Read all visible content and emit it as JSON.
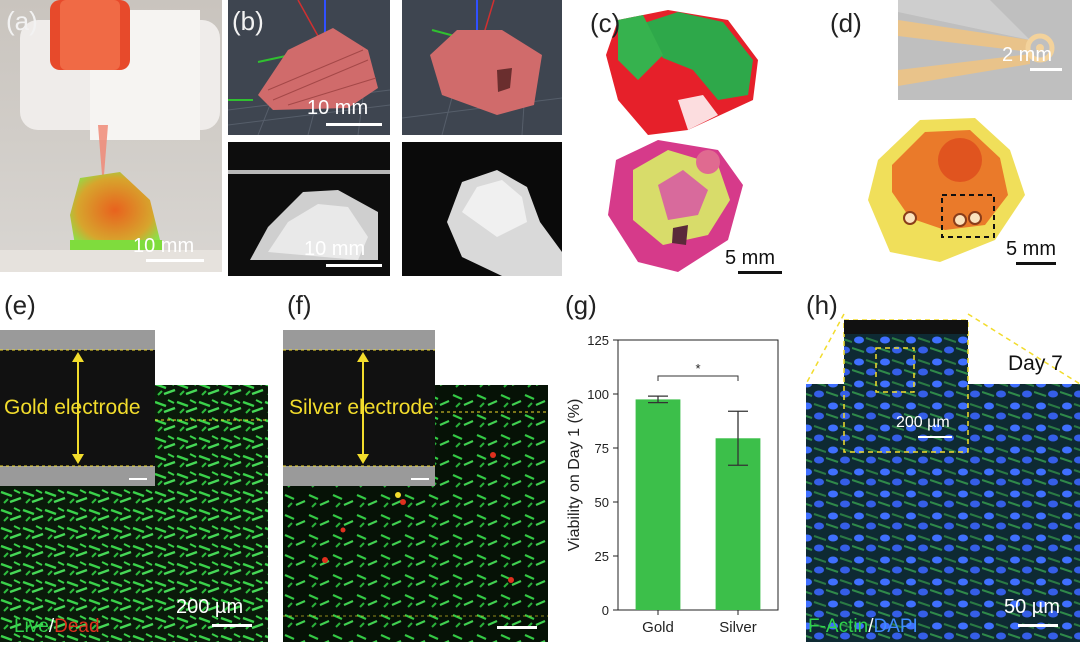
{
  "panels": {
    "a": {
      "label": "(a)",
      "scale": "10 mm"
    },
    "b": {
      "label": "(b)",
      "scale_top": "10 mm",
      "scale_bottom": "10 mm"
    },
    "c": {
      "label": "(c)",
      "scale": "5 mm"
    },
    "d": {
      "label": "(d)",
      "scale_inset": "2 mm",
      "scale": "5 mm"
    },
    "e": {
      "label": "(e)",
      "electrode": "Gold electrode",
      "stain_live": "Live",
      "stain_sep": "/",
      "stain_dead": "Dead",
      "scale": "200 µm"
    },
    "f": {
      "label": "(f)",
      "electrode": "Silver electrode"
    },
    "g": {
      "label": "(g)"
    },
    "h": {
      "label": "(h)",
      "day": "Day 7",
      "scale_inset": "200 µm",
      "stain_a": "F-Actin",
      "stain_sep": "/",
      "stain_b": "DAPI",
      "scale": "50 µm"
    }
  },
  "colors": {
    "bar": "#3cbf4a",
    "live": "#2fd34a",
    "dead": "#e0301e",
    "dapi": "#3f6fff",
    "yellow": "#f2dc2c"
  },
  "chart_data": {
    "type": "bar",
    "categories": [
      "Gold",
      "Silver"
    ],
    "values": [
      97.5,
      79.5
    ],
    "errors": [
      1.5,
      12.5
    ],
    "ylabel": "Viability on Day 1 (%)",
    "ylim": [
      0,
      125
    ],
    "yticks": [
      0,
      25,
      50,
      75,
      100,
      125
    ],
    "significance": "*",
    "grid": false
  }
}
